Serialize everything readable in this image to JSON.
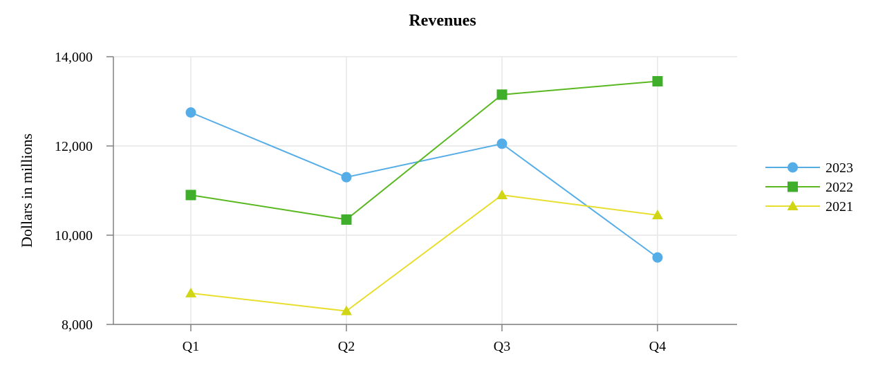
{
  "chart_data": {
    "type": "line",
    "title": "Revenues",
    "xlabel": "",
    "ylabel": "Dollars in millions",
    "categories": [
      "Q1",
      "Q2",
      "Q3",
      "Q4"
    ],
    "ylim": [
      8000,
      14000
    ],
    "yticks": [
      8000,
      10000,
      12000,
      14000
    ],
    "ytick_labels": [
      "8,000",
      "10,000",
      "12,000",
      "14,000"
    ],
    "grid": true,
    "legend_position": "right",
    "series": [
      {
        "name": "2023",
        "values": [
          12750,
          11300,
          12050,
          9500
        ],
        "color": "#55ADE8",
        "marker": "circle"
      },
      {
        "name": "2022",
        "values": [
          10900,
          10350,
          13150,
          13450
        ],
        "color": "#59B820",
        "marker": "square"
      },
      {
        "name": "2021",
        "values": [
          8700,
          8300,
          10900,
          10450
        ],
        "color": "#E8DE2E",
        "marker": "triangle"
      }
    ]
  }
}
